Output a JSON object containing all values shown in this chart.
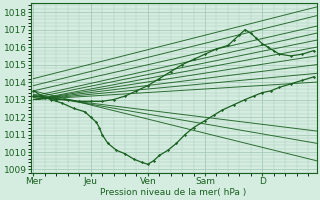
{
  "background_color": "#d4ede0",
  "grid_color": "#a8cbb8",
  "line_color": "#1a6020",
  "xlabel": "Pression niveau de la mer( hPa )",
  "ylim": [
    1008.8,
    1018.5
  ],
  "yticks": [
    1009,
    1010,
    1011,
    1012,
    1013,
    1014,
    1015,
    1016,
    1017,
    1018
  ],
  "xlim": [
    -0.05,
    4.95
  ],
  "xtick_positions": [
    0,
    1,
    2,
    3,
    4
  ],
  "xtick_labels": [
    "Mer",
    "Jeu",
    "Ven",
    "Sam",
    "D"
  ],
  "fan_origin_x": 0.1,
  "fan_origin_y": 1013.0,
  "fan_lines": [
    {
      "x0": 0.0,
      "y0": 1014.2,
      "x1": 4.95,
      "y1": 1018.3
    },
    {
      "x0": 0.0,
      "y0": 1013.8,
      "x1": 4.95,
      "y1": 1017.8
    },
    {
      "x0": 0.0,
      "y0": 1013.5,
      "x1": 4.95,
      "y1": 1017.2
    },
    {
      "x0": 0.0,
      "y0": 1013.2,
      "x1": 4.95,
      "y1": 1016.8
    },
    {
      "x0": 0.0,
      "y0": 1013.1,
      "x1": 4.95,
      "y1": 1016.4
    },
    {
      "x0": 0.0,
      "y0": 1013.0,
      "x1": 4.95,
      "y1": 1016.0
    },
    {
      "x0": 0.0,
      "y0": 1013.0,
      "x1": 4.95,
      "y1": 1015.5
    },
    {
      "x0": 0.0,
      "y0": 1013.0,
      "x1": 4.95,
      "y1": 1015.0
    },
    {
      "x0": 0.0,
      "y0": 1013.0,
      "x1": 4.95,
      "y1": 1014.5
    },
    {
      "x0": 0.0,
      "y0": 1013.0,
      "x1": 4.95,
      "y1": 1014.0
    },
    {
      "x0": 0.0,
      "y0": 1013.2,
      "x1": 4.95,
      "y1": 1011.2
    },
    {
      "x0": 0.0,
      "y0": 1013.3,
      "x1": 4.95,
      "y1": 1010.5
    },
    {
      "x0": 0.0,
      "y0": 1013.5,
      "x1": 4.95,
      "y1": 1009.5
    }
  ],
  "main_curve_x": [
    0.0,
    0.15,
    0.3,
    0.5,
    0.7,
    0.9,
    1.0,
    1.1,
    1.15,
    1.2,
    1.3,
    1.45,
    1.6,
    1.75,
    1.9,
    2.0,
    2.1,
    2.2,
    2.35,
    2.5,
    2.65,
    2.8,
    3.0,
    3.15,
    3.3,
    3.5,
    3.7,
    3.85,
    4.0,
    4.15,
    4.3,
    4.5,
    4.7,
    4.9
  ],
  "main_curve_y": [
    1013.5,
    1013.2,
    1013.0,
    1012.8,
    1012.5,
    1012.3,
    1012.0,
    1011.7,
    1011.4,
    1011.0,
    1010.5,
    1010.1,
    1009.9,
    1009.6,
    1009.4,
    1009.3,
    1009.5,
    1009.8,
    1010.1,
    1010.5,
    1011.0,
    1011.4,
    1011.8,
    1012.1,
    1012.4,
    1012.7,
    1013.0,
    1013.2,
    1013.4,
    1013.5,
    1013.7,
    1013.9,
    1014.1,
    1014.3
  ],
  "upper_curve_x": [
    0.0,
    0.2,
    0.4,
    0.6,
    0.8,
    1.0,
    1.2,
    1.4,
    1.6,
    1.8,
    2.0,
    2.2,
    2.4,
    2.6,
    2.8,
    3.0,
    3.2,
    3.4,
    3.5,
    3.6,
    3.7,
    3.8,
    3.9,
    4.0,
    4.1,
    4.2,
    4.3,
    4.5,
    4.7,
    4.9
  ],
  "upper_curve_y": [
    1013.2,
    1013.1,
    1013.0,
    1013.0,
    1012.9,
    1012.9,
    1012.9,
    1013.0,
    1013.2,
    1013.5,
    1013.8,
    1014.2,
    1014.6,
    1015.0,
    1015.3,
    1015.6,
    1015.9,
    1016.1,
    1016.4,
    1016.7,
    1017.0,
    1016.8,
    1016.5,
    1016.2,
    1016.0,
    1015.8,
    1015.6,
    1015.5,
    1015.6,
    1015.8
  ]
}
